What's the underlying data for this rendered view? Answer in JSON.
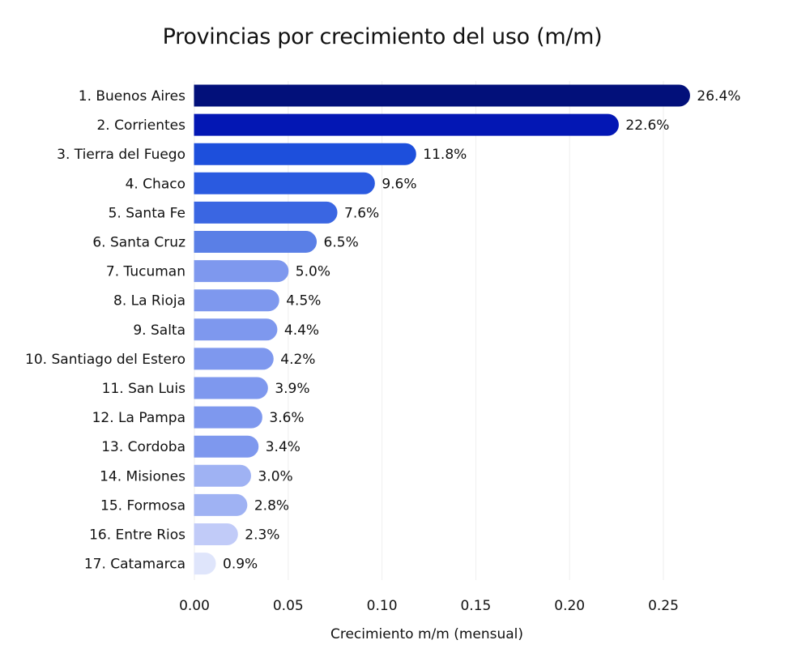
{
  "chart_data": {
    "type": "bar",
    "orientation": "horizontal",
    "title": "Provincias por crecimiento del uso (m/m)",
    "xlabel": "Crecimiento m/m (mensual)",
    "ylabel": "",
    "xlim": [
      0,
      0.28
    ],
    "xticks": [
      "0.00",
      "0.05",
      "0.10",
      "0.15",
      "0.20",
      "0.25"
    ],
    "xtick_values": [
      0,
      0.05,
      0.1,
      0.15,
      0.2,
      0.25
    ],
    "grid": true,
    "categories": [
      "1. Buenos Aires",
      "2. Corrientes",
      "3. Tierra del Fuego",
      "4. Chaco",
      "5. Santa Fe",
      "6. Santa Cruz",
      "7. Tucuman",
      "8. La Rioja",
      "9. Salta",
      "10. Santiago del Estero",
      "11. San Luis",
      "12. La Pampa",
      "13. Cordoba",
      "14. Misiones",
      "15. Formosa",
      "16. Entre Rios",
      "17. Catamarca"
    ],
    "values": [
      0.264,
      0.226,
      0.118,
      0.096,
      0.076,
      0.065,
      0.05,
      0.045,
      0.044,
      0.042,
      0.039,
      0.036,
      0.034,
      0.03,
      0.028,
      0.023,
      0.009
    ],
    "value_labels": [
      "26.4%",
      "22.6%",
      "11.8%",
      "9.6%",
      "7.6%",
      "6.5%",
      "5.0%",
      "4.5%",
      "4.4%",
      "4.2%",
      "3.9%",
      "3.6%",
      "3.4%",
      "3.0%",
      "2.8%",
      "2.3%",
      "0.9%"
    ],
    "colors": [
      "#02107a",
      "#0317b4",
      "#1d4fdc",
      "#2a5ae0",
      "#3a66e2",
      "#5a7fe6",
      "#7e98ee",
      "#7e98ee",
      "#7e98ee",
      "#7e98ee",
      "#7e98ee",
      "#7e98ee",
      "#7e98ee",
      "#9fb2f3",
      "#9fb2f3",
      "#c1cbf8",
      "#dfe5fb"
    ]
  }
}
